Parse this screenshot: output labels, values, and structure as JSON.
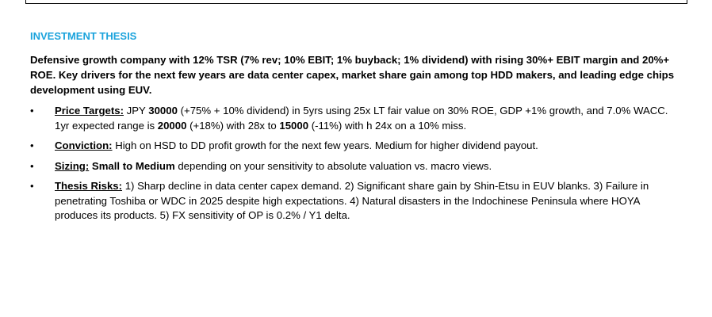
{
  "heading": "INVESTMENT THESIS",
  "summary": "Defensive growth company with 12% TSR (7% rev; 10% EBIT; 1% buyback; 1% dividend) with rising 30%+ EBIT margin and 20%+ ROE. Key drivers for the next few years are data center capex, market share gain among top HDD makers, and leading edge chips development using EUV.",
  "bullet_glyph": "•",
  "price_targets": {
    "label": "Price Targets:",
    "t1": " JPY ",
    "v1": "30000",
    "t2": " (+75% + 10% dividend) in 5yrs using 25x LT fair value on 30% ROE, GDP +1% growth, and 7.0% WACC. 1yr expected range is ",
    "v2": "20000",
    "t3": " (+18%) with 28x to ",
    "v3": "15000",
    "t4": " (-11%) with h 24x on a 10% miss."
  },
  "conviction": {
    "label": "Conviction:",
    "text": " High on HSD to DD profit growth for the next few years. Medium for higher dividend payout."
  },
  "sizing": {
    "label": "Sizing:",
    "bold_text": " Small to Medium",
    "text": " depending on your sensitivity to absolute valuation vs. macro views."
  },
  "thesis_risks": {
    "label": "Thesis Risks:",
    "text": " 1) Sharp decline in data center capex demand. 2) Significant share gain by Shin-Etsu in EUV blanks. 3) Failure in penetrating Toshiba or WDC in 2025 despite high expectations. 4) Natural disasters in the Indochinese Peninsula where HOYA produces its products. 5) FX sensitivity of OP is 0.2% / Y1 delta."
  }
}
